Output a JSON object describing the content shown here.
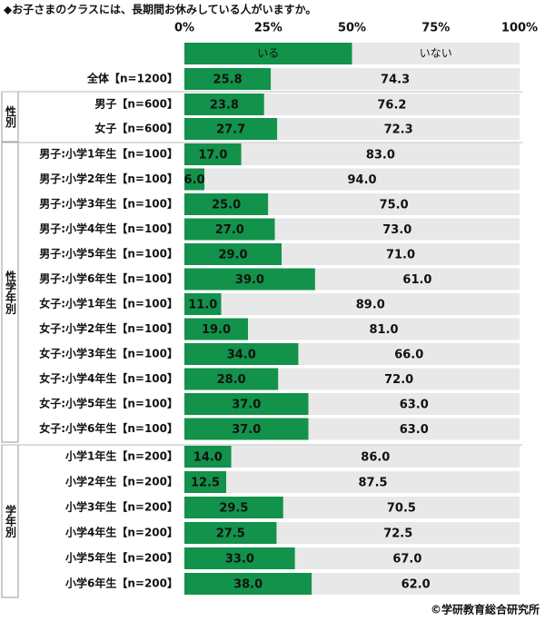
{
  "chart_data": {
    "type": "stacked-bar-horizontal",
    "title": "◆お子さまのクラスには、長期間お休みしている人がいますか。",
    "source": "©学研教育総合研究所",
    "xlim": [
      0,
      100
    ],
    "xticks": [
      {
        "value": 0,
        "label": "0%"
      },
      {
        "value": 25,
        "label": "25%"
      },
      {
        "value": 50,
        "label": "50%"
      },
      {
        "value": 75,
        "label": "75%"
      },
      {
        "value": 100,
        "label": "100%"
      }
    ],
    "grid": false,
    "row_groups": [
      "性別",
      "性学年別",
      "学年別"
    ],
    "categories": [
      "全体【n=1200】",
      "男子【n=600】",
      "女子【n=600】",
      "男子:小学1年生【n=100】",
      "男子:小学2年生【n=100】",
      "男子:小学3年生【n=100】",
      "男子:小学4年生【n=100】",
      "男子:小学5年生【n=100】",
      "男子:小学6年生【n=100】",
      "女子:小学1年生【n=100】",
      "女子:小学2年生【n=100】",
      "女子:小学3年生【n=100】",
      "女子:小学4年生【n=100】",
      "女子:小学5年生【n=100】",
      "女子:小学6年生【n=100】",
      "小学1年生【n=200】",
      "小学2年生【n=200】",
      "小学3年生【n=200】",
      "小学4年生【n=200】",
      "小学5年生【n=200】",
      "小学6年生【n=200】"
    ],
    "series": [
      {
        "name": "いる",
        "color": "#12924a",
        "label_color": "#ffffff",
        "values": [
          25.8,
          23.8,
          27.7,
          17,
          6,
          25,
          27,
          29,
          39,
          11,
          19,
          34,
          28,
          37,
          37,
          14,
          12.5,
          29.5,
          27.5,
          33,
          38
        ],
        "value_labels": [
          "25.8",
          "23.8",
          "27.7",
          "17.0",
          "6.0",
          "25.0",
          "27.0",
          "29.0",
          "39.0",
          "11.0",
          "19.0",
          "34.0",
          "28.0",
          "37.0",
          "37.0",
          "14.0",
          "12.5",
          "29.5",
          "27.5",
          "33.0",
          "38.0"
        ]
      },
      {
        "name": "いない",
        "color": "#e8e8e8",
        "label_color": "#111111",
        "values": [
          74.3,
          76.2,
          72.3,
          83,
          94,
          75,
          73,
          71,
          61,
          89,
          81,
          66,
          72,
          63,
          63,
          86,
          87.5,
          70.5,
          72.5,
          67,
          62
        ],
        "value_labels": [
          "74.3",
          "76.2",
          "72.3",
          "83.0",
          "94.0",
          "75.0",
          "73.0",
          "71.0",
          "61.0",
          "89.0",
          "81.0",
          "66.0",
          "72.0",
          "63.0",
          "63.0",
          "86.0",
          "87.5",
          "70.5",
          "72.5",
          "67.0",
          "62.0"
        ]
      }
    ]
  }
}
